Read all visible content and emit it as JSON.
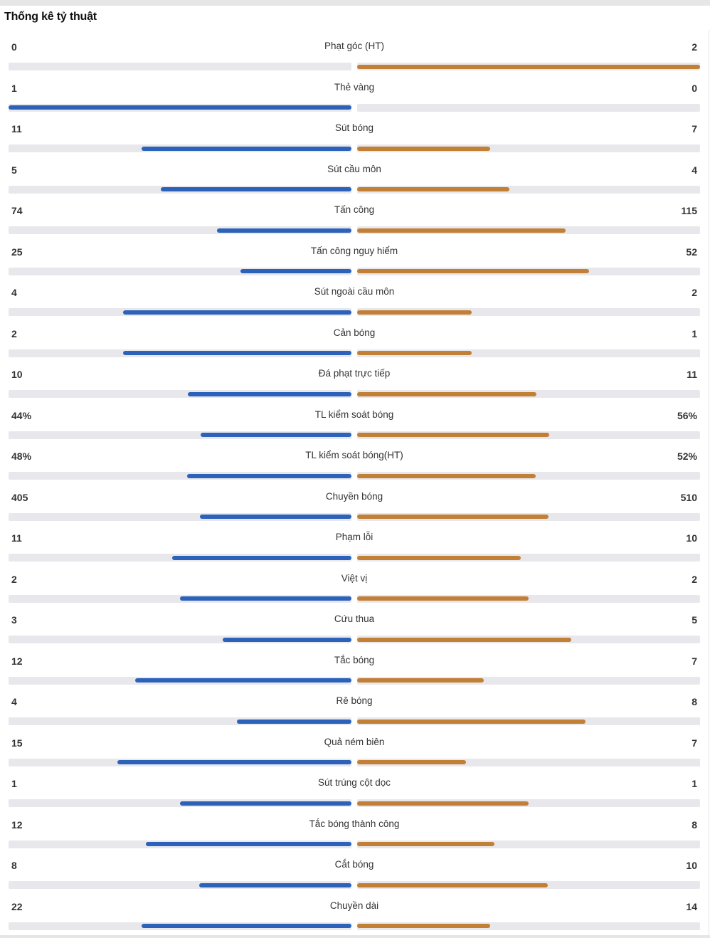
{
  "title": "Thống kê tỷ thuật",
  "colors": {
    "home": "#2c62b9",
    "away": "#c27f36",
    "track": "#e8e8ec"
  },
  "stats": [
    {
      "label": "Phạt góc (HT)",
      "home": "0",
      "away": "2",
      "home_value": 0,
      "away_value": 2
    },
    {
      "label": "Thẻ vàng",
      "home": "1",
      "away": "0",
      "home_value": 1,
      "away_value": 0
    },
    {
      "label": "Sút bóng",
      "home": "11",
      "away": "7",
      "home_value": 11,
      "away_value": 7
    },
    {
      "label": "Sút cầu môn",
      "home": "5",
      "away": "4",
      "home_value": 5,
      "away_value": 4
    },
    {
      "label": "Tấn công",
      "home": "74",
      "away": "115",
      "home_value": 74,
      "away_value": 115
    },
    {
      "label": "Tấn công nguy hiểm",
      "home": "25",
      "away": "52",
      "home_value": 25,
      "away_value": 52
    },
    {
      "label": "Sút ngoài cầu môn",
      "home": "4",
      "away": "2",
      "home_value": 4,
      "away_value": 2
    },
    {
      "label": "Cản bóng",
      "home": "2",
      "away": "1",
      "home_value": 2,
      "away_value": 1
    },
    {
      "label": "Đá phạt trực tiếp",
      "home": "10",
      "away": "11",
      "home_value": 10,
      "away_value": 11
    },
    {
      "label": "TL kiểm soát bóng",
      "home": "44%",
      "away": "56%",
      "home_value": 44,
      "away_value": 56
    },
    {
      "label": "TL kiểm soát bóng(HT)",
      "home": "48%",
      "away": "52%",
      "home_value": 48,
      "away_value": 52
    },
    {
      "label": "Chuyền bóng",
      "home": "405",
      "away": "510",
      "home_value": 405,
      "away_value": 510
    },
    {
      "label": "Phạm lỗi",
      "home": "11",
      "away": "10",
      "home_value": 11,
      "away_value": 10
    },
    {
      "label": "Việt vị",
      "home": "2",
      "away": "2",
      "home_value": 2,
      "away_value": 2
    },
    {
      "label": "Cứu thua",
      "home": "3",
      "away": "5",
      "home_value": 3,
      "away_value": 5
    },
    {
      "label": "Tắc bóng",
      "home": "12",
      "away": "7",
      "home_value": 12,
      "away_value": 7
    },
    {
      "label": "Rê bóng",
      "home": "4",
      "away": "8",
      "home_value": 4,
      "away_value": 8
    },
    {
      "label": "Quả ném biên",
      "home": "15",
      "away": "7",
      "home_value": 15,
      "away_value": 7
    },
    {
      "label": "Sút trúng cột dọc",
      "home": "1",
      "away": "1",
      "home_value": 1,
      "away_value": 1
    },
    {
      "label": "Tắc bóng thành công",
      "home": "12",
      "away": "8",
      "home_value": 12,
      "away_value": 8
    },
    {
      "label": "Cắt bóng",
      "home": "8",
      "away": "10",
      "home_value": 8,
      "away_value": 10
    },
    {
      "label": "Chuyền dài",
      "home": "22",
      "away": "14",
      "home_value": 22,
      "away_value": 14
    }
  ]
}
